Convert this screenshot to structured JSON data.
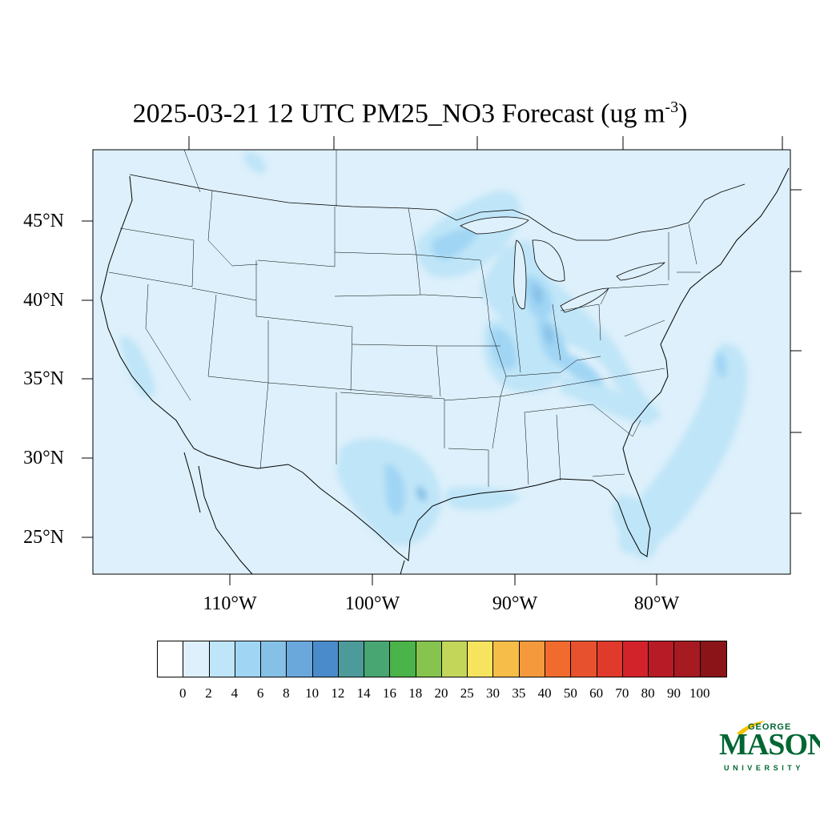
{
  "title": {
    "main": "2025-03-21 12 UTC PM25_NO3 Forecast (ug m",
    "superscript": "-3",
    "close": ")"
  },
  "map": {
    "region": "Continental United States",
    "background_color": "#ddf0fb",
    "lat_labels": [
      "45°N",
      "40°N",
      "35°N",
      "30°N",
      "25°N"
    ],
    "lon_labels": [
      "110°W",
      "100°W",
      "90°W",
      "80°W"
    ]
  },
  "colorbar": {
    "colors": [
      "#ffffff",
      "#ddf0fb",
      "#bfe5f8",
      "#a0d6f4",
      "#85c0e6",
      "#6aa8db",
      "#4a8ccb",
      "#4d9a9a",
      "#48a673",
      "#4ab349",
      "#86c44f",
      "#c3d65a",
      "#f6e45f",
      "#f6bd48",
      "#f59a3c",
      "#f26b2e",
      "#e8512d",
      "#e03a2c",
      "#d2232b",
      "#b71c26",
      "#a61a22",
      "#8b1419"
    ],
    "labels": [
      "0",
      "2",
      "4",
      "6",
      "8",
      "10",
      "12",
      "14",
      "16",
      "18",
      "20",
      "25",
      "30",
      "35",
      "40",
      "50",
      "60",
      "70",
      "80",
      "90",
      "100"
    ]
  },
  "logo": {
    "line1": "GEORGE",
    "line2": "MASON",
    "line3": "UNIVERSITY",
    "color": "#006633",
    "accent": "#f2c200"
  }
}
